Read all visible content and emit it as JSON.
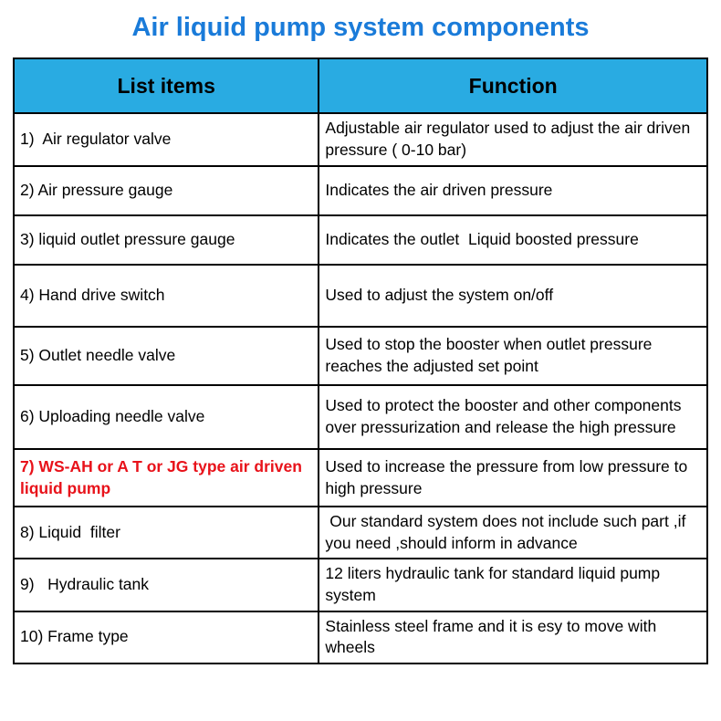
{
  "title": "Air liquid pump system components",
  "colors": {
    "title_color": "#1a7bd9",
    "header_bg": "#29abe2",
    "highlight_text": "#e8121a"
  },
  "table": {
    "headers": [
      "List items",
      "Function"
    ],
    "rows": [
      {
        "item": "1)  Air regulator valve",
        "function": "Adjustable air regulator used to adjust the air driven pressure ( 0-10 bar)",
        "highlight": false
      },
      {
        "item": "2) Air pressure gauge",
        "function": "Indicates the air driven pressure",
        "highlight": false
      },
      {
        "item": "3) liquid outlet pressure gauge",
        "function": "Indicates the outlet  Liquid boosted pressure",
        "highlight": false
      },
      {
        "item": "4) Hand drive switch",
        "function": "Used to adjust the system on/off",
        "highlight": false
      },
      {
        "item": "5) Outlet needle valve",
        "function": "Used to stop the booster when outlet pressure reaches the adjusted set point",
        "highlight": false
      },
      {
        "item": "6) Uploading needle valve",
        "function": "Used to protect the booster and other components over pressurization and release the high pressure",
        "highlight": false
      },
      {
        "item": "7) WS-AH or A T or JG type air driven liquid pump",
        "function": "Used to increase the pressure from low pressure to high pressure",
        "highlight": true
      },
      {
        "item": "8) Liquid  filter",
        "function": " Our standard system does not include such part ,if you need ,should inform in advance",
        "highlight": false
      },
      {
        "item": "9)   Hydraulic tank",
        "function": "12 liters hydraulic tank for standard liquid pump system",
        "highlight": false
      },
      {
        "item": "10) Frame type",
        "function": "Stainless steel frame and it is esy to move with wheels",
        "highlight": false
      }
    ]
  }
}
